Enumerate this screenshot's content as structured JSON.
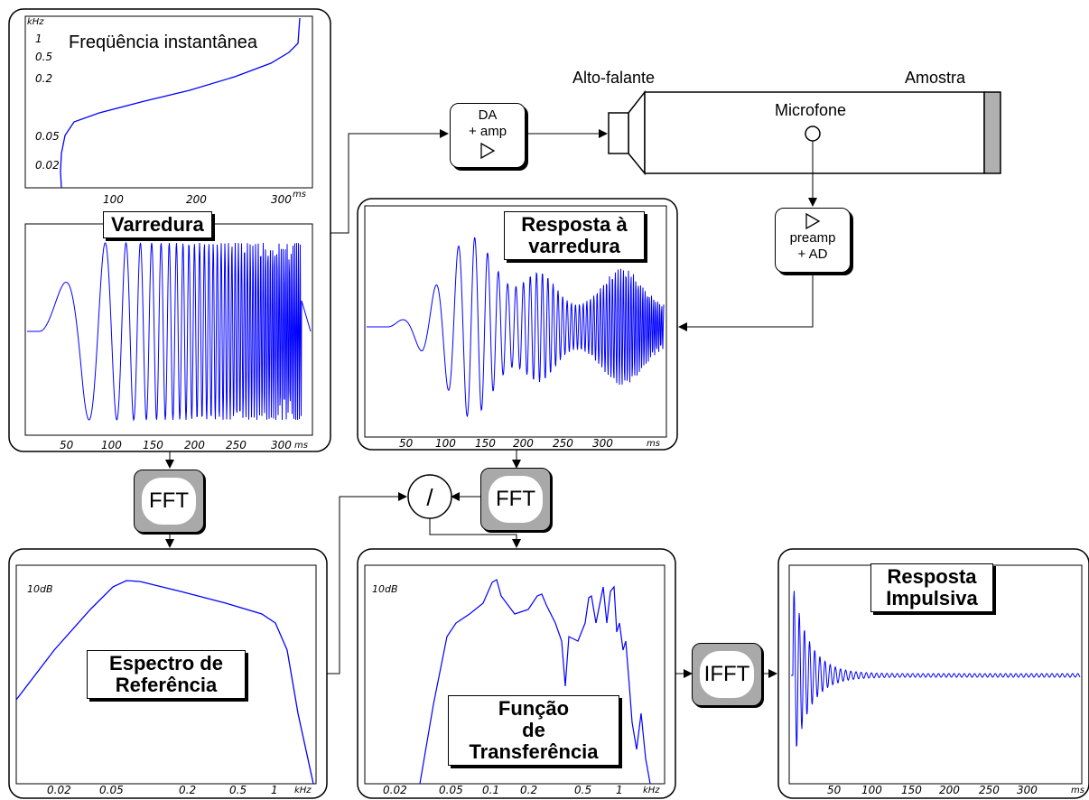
{
  "labels": {
    "loudspeaker": "Alto-falante",
    "sample": "Amostra",
    "microphone": "Microfone",
    "da_line1": "DA",
    "da_line2": "+ amp",
    "preamp_line1": "preamp",
    "preamp_line2": "+ AD",
    "fft1": "FFT",
    "fft2": "FFT",
    "ifft": "IFFT",
    "divide": "/"
  },
  "panels": {
    "freq": {
      "title": "Freqüência instantânea",
      "unit_y": "kHz",
      "unit_x": "ms",
      "y_ticks": [
        "1",
        "0.5",
        "0.2",
        "0.05",
        "0.02"
      ],
      "x_ticks": [
        "100",
        "200",
        "300"
      ]
    },
    "sweep": {
      "title": "Varredura",
      "unit_x": "ms",
      "x_ticks": [
        "50",
        "100",
        "150",
        "200",
        "250",
        "300"
      ]
    },
    "response": {
      "title_line1": "Resposta à",
      "title_line2": "varredura",
      "unit_x": "ms",
      "x_ticks": [
        "50",
        "100",
        "150",
        "200",
        "250",
        "300"
      ]
    },
    "ref_spectrum": {
      "title_line1": "Espectro de",
      "title_line2": "Referência",
      "db_label": "10dB",
      "unit_x": "kHz",
      "x_ticks": [
        "0.02",
        "0.05",
        "0.2",
        "0.5",
        "1"
      ]
    },
    "transfer": {
      "title_line1": "Função",
      "title_line2": "de",
      "title_line3": "Transferência",
      "db_label": "10dB",
      "unit_x": "kHz",
      "x_ticks": [
        "0.02",
        "0.05",
        "0.1",
        "0.2",
        "0.5",
        "1"
      ]
    },
    "impulse": {
      "title_line1": "Resposta",
      "title_line2": "Impulsiva",
      "unit_x": "ms",
      "x_ticks": [
        "50",
        "100",
        "150",
        "200",
        "250",
        "300"
      ]
    }
  },
  "colors": {
    "trace": "#0000ff",
    "block_gray": "#a9a9a9",
    "sample_gray": "#b0b0b0"
  }
}
